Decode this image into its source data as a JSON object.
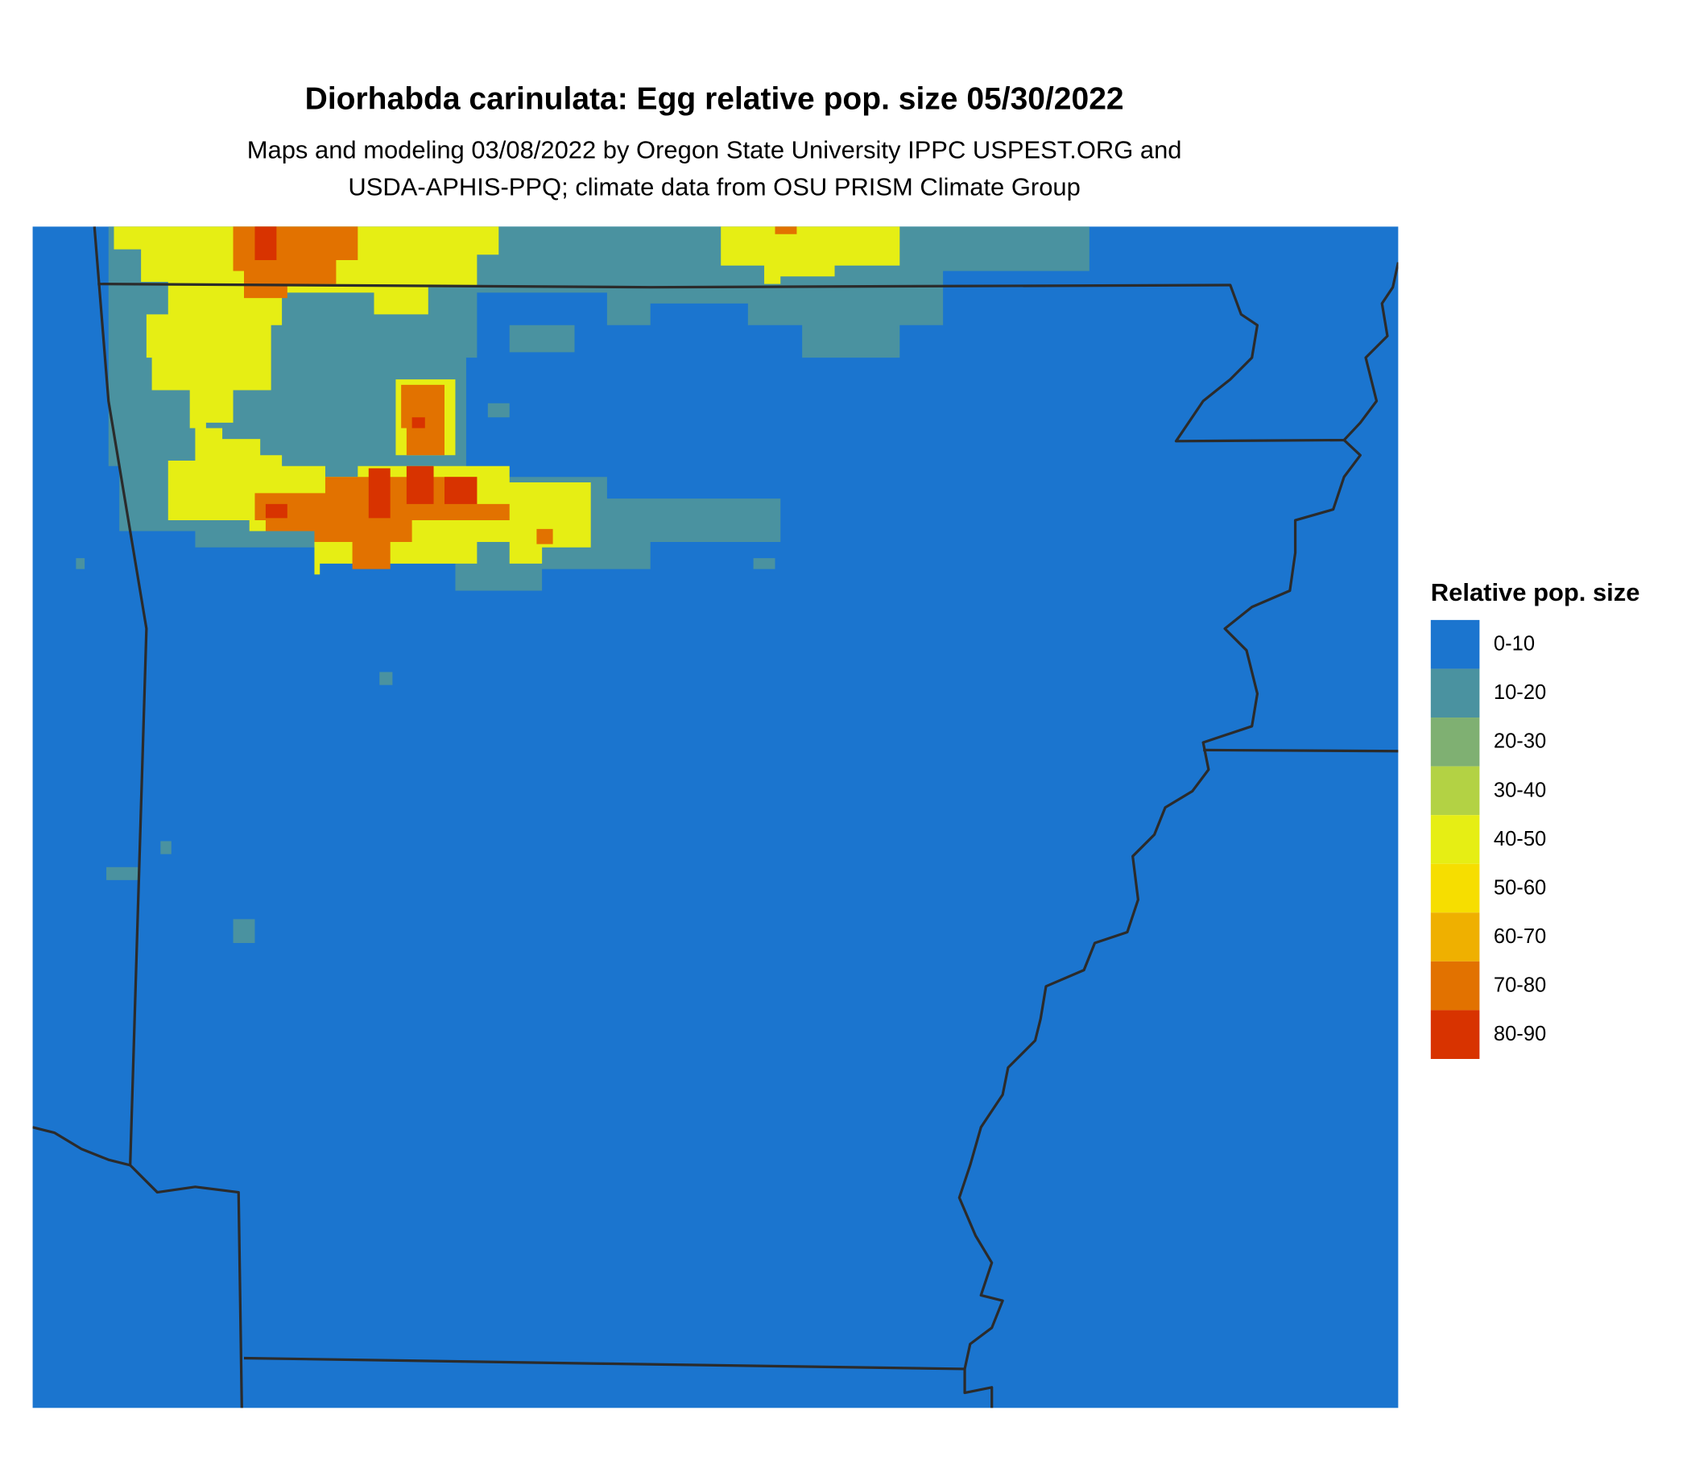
{
  "title": "Diorhabda carinulata: Egg relative pop. size 05/30/2022",
  "subtitle": [
    "Maps and modeling 03/08/2022 by Oregon State University IPPC USPEST.ORG and",
    "USDA-APHIS-PPQ; climate data from OSU PRISM Climate Group"
  ],
  "legend": {
    "title": "Relative pop. size",
    "items": [
      {
        "label": "0-10",
        "color": "#1b75cf"
      },
      {
        "label": "10-20",
        "color": "#4a92a0"
      },
      {
        "label": "20-30",
        "color": "#7fb072"
      },
      {
        "label": "30-40",
        "color": "#b3d244"
      },
      {
        "label": "40-50",
        "color": "#e6ee14"
      },
      {
        "label": "50-60",
        "color": "#f6de00"
      },
      {
        "label": "60-70",
        "color": "#efb000"
      },
      {
        "label": "70-80",
        "color": "#e27200"
      },
      {
        "label": "80-90",
        "color": "#d83300"
      }
    ]
  }
}
